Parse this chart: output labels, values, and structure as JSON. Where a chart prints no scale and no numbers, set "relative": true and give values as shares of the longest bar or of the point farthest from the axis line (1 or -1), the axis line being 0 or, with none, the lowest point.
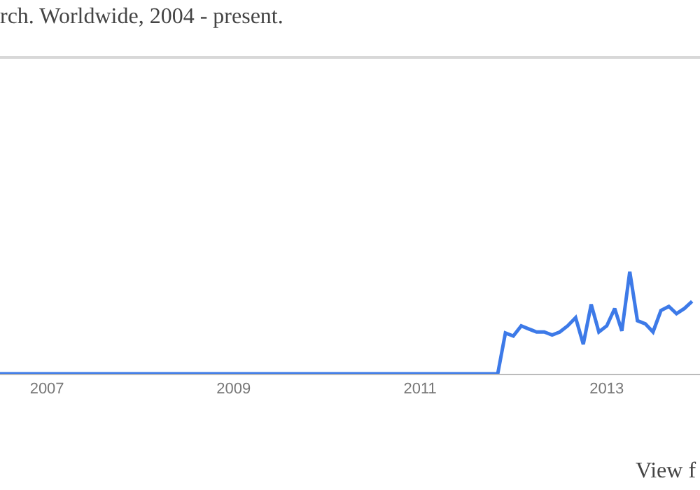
{
  "chart_data": {
    "type": "line",
    "title": "rch. Worldwide, 2004 - present.",
    "relative": true,
    "line_style": "solid",
    "marker": "none",
    "xlim": [
      "2006-07",
      "2014-01"
    ],
    "xticks": [
      {
        "value": "2007-01",
        "label": "2007"
      },
      {
        "value": "2009-01",
        "label": "2009"
      },
      {
        "value": "2011-01",
        "label": "2011"
      },
      {
        "value": "2013-01",
        "label": "2013"
      }
    ],
    "x": [
      "2006-07",
      "2011-11",
      "2011-12",
      "2012-01",
      "2012-02",
      "2012-03",
      "2012-04",
      "2012-05",
      "2012-06",
      "2012-07",
      "2012-08",
      "2012-09",
      "2012-10",
      "2012-11",
      "2012-12",
      "2013-01",
      "2013-02",
      "2013-03",
      "2013-04",
      "2013-05",
      "2013-06",
      "2013-07",
      "2013-08",
      "2013-09",
      "2013-10",
      "2013-11",
      "2013-12"
    ],
    "series": [
      {
        "color": "#3d7ae8",
        "values": [
          0,
          0,
          0.4,
          0.37,
          0.47,
          0.44,
          0.41,
          0.41,
          0.38,
          0.41,
          0.47,
          0.55,
          0.29,
          0.68,
          0.41,
          0.47,
          0.64,
          0.42,
          1.0,
          0.52,
          0.49,
          0.41,
          0.62,
          0.66,
          0.59,
          0.64,
          0.71
        ]
      }
    ],
    "annotations": [
      "View f"
    ]
  }
}
